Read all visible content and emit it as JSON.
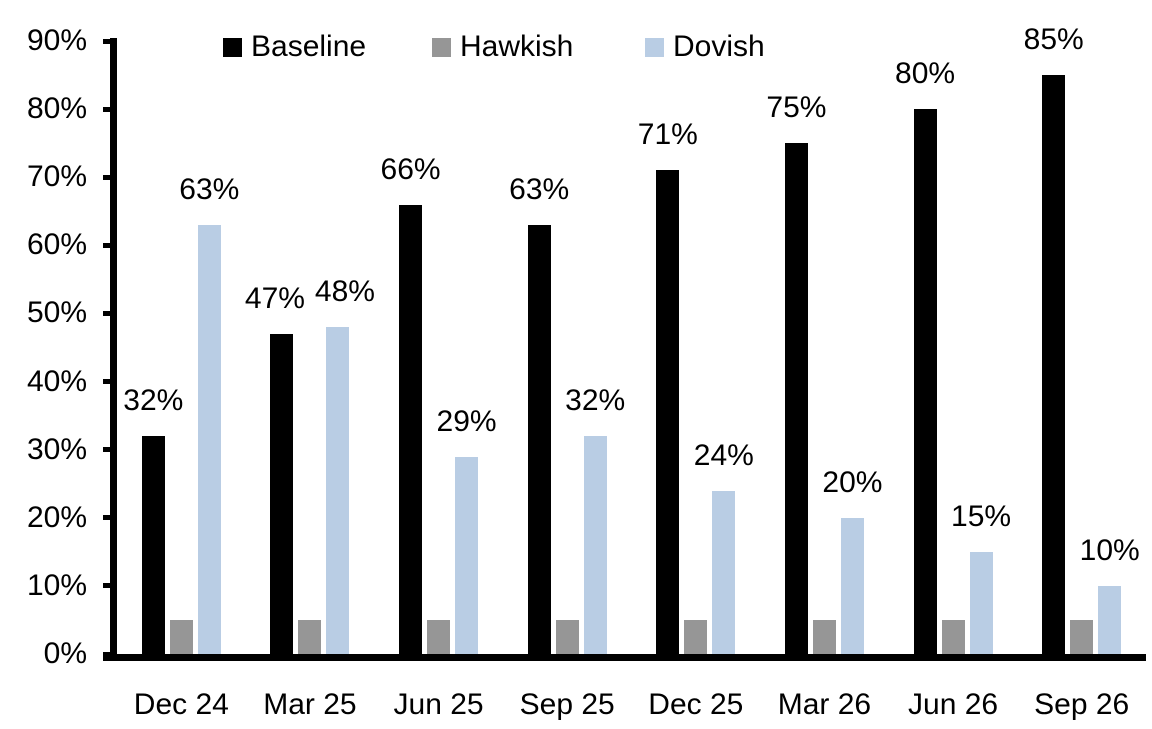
{
  "chart_data": {
    "type": "bar",
    "title": "",
    "categories": [
      "Dec 24",
      "Mar 25",
      "Jun 25",
      "Sep 25",
      "Dec 25",
      "Mar 26",
      "Jun 26",
      "Sep 26"
    ],
    "series": [
      {
        "name": "Baseline",
        "color": "#000000",
        "values": [
          32,
          47,
          66,
          63,
          71,
          75,
          80,
          85
        ],
        "data_labels": [
          "32%",
          "47%",
          "66%",
          "63%",
          "71%",
          "75%",
          "80%",
          "85%"
        ]
      },
      {
        "name": "Hawkish",
        "color": "#969696",
        "values": [
          5,
          5,
          5,
          5,
          5,
          5,
          5,
          5
        ],
        "data_labels": [
          "",
          "",
          "",
          "",
          "",
          "",
          "",
          ""
        ]
      },
      {
        "name": "Dovish",
        "color": "#B9CDE4",
        "values": [
          63,
          48,
          29,
          32,
          24,
          20,
          15,
          10
        ],
        "data_labels": [
          "63%",
          "48%",
          "29%",
          "32%",
          "24%",
          "20%",
          "15%",
          "10%"
        ]
      }
    ],
    "ylim": [
      0,
      90
    ],
    "ytick_labels": [
      "0%",
      "10%",
      "20%",
      "30%",
      "40%",
      "50%",
      "60%",
      "70%",
      "80%",
      "90%"
    ],
    "legend": {
      "position": "top",
      "entries": [
        "Baseline",
        "Hawkish",
        "Dovish"
      ]
    },
    "grid": false,
    "axis_color": "#000000",
    "background_color": "#FFFFFF"
  }
}
